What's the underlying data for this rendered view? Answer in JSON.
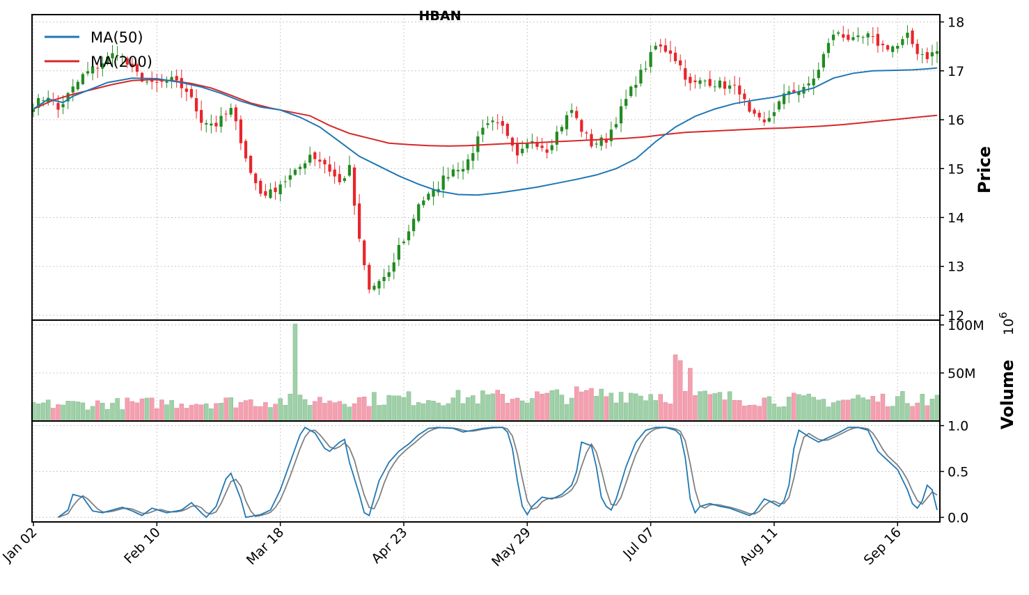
{
  "chart_data": {
    "type": "candlestick",
    "title": "HBAN",
    "colors": {
      "up": "#228b22",
      "down": "#e8262b",
      "ma50": "#1f77b4",
      "ma200": "#d62728",
      "stoch_k": "#1f77b4",
      "stoch_d": "#808080",
      "volume_up": "#9fd0a8",
      "volume_down": "#f4a0b0",
      "grid": "#c8c8c8"
    },
    "legend": {
      "placement": "upper-left",
      "entries": [
        "MA(50)",
        "MA(200)"
      ]
    },
    "x_tick_labels": [
      "Jan 02",
      "Feb 10",
      "Mar 18",
      "Apr 23",
      "May 29",
      "Jul 07",
      "Aug 11",
      "Sep 16"
    ],
    "x_tick_positions": [
      0,
      25,
      50,
      75,
      100,
      125,
      150,
      175
    ],
    "n_sessions": 184,
    "price_panel": {
      "ylabel": "Price",
      "ylim": [
        11.9,
        18.15
      ],
      "ticks": [
        12,
        13,
        14,
        15,
        16,
        17,
        18
      ],
      "grid": true,
      "close_anchors": [
        [
          0,
          16.3
        ],
        [
          3,
          16.5
        ],
        [
          5,
          16.2
        ],
        [
          7,
          16.5
        ],
        [
          10,
          16.9
        ],
        [
          13,
          17.1
        ],
        [
          17,
          17.4
        ],
        [
          20,
          17.0
        ],
        [
          24,
          16.7
        ],
        [
          28,
          16.8
        ],
        [
          31,
          16.6
        ],
        [
          34,
          16.0
        ],
        [
          37,
          15.9
        ],
        [
          40,
          16.2
        ],
        [
          42,
          15.6
        ],
        [
          44,
          14.9
        ],
        [
          46,
          14.5
        ],
        [
          48,
          14.5
        ],
        [
          50,
          14.7
        ],
        [
          53,
          14.9
        ],
        [
          56,
          15.3
        ],
        [
          59,
          15.1
        ],
        [
          62,
          14.7
        ],
        [
          64,
          15.0
        ],
        [
          66,
          13.5
        ],
        [
          68,
          12.5
        ],
        [
          70,
          12.7
        ],
        [
          72,
          12.8
        ],
        [
          74,
          13.4
        ],
        [
          76,
          13.7
        ],
        [
          78,
          14.3
        ],
        [
          81,
          14.5
        ],
        [
          83,
          14.8
        ],
        [
          85,
          15.0
        ],
        [
          88,
          15.1
        ],
        [
          91,
          15.9
        ],
        [
          94,
          16.0
        ],
        [
          96,
          15.6
        ],
        [
          98,
          15.2
        ],
        [
          101,
          15.6
        ],
        [
          104,
          15.4
        ],
        [
          107,
          15.9
        ],
        [
          109,
          16.2
        ],
        [
          111,
          15.8
        ],
        [
          113,
          15.5
        ],
        [
          116,
          15.6
        ],
        [
          119,
          16.2
        ],
        [
          122,
          16.8
        ],
        [
          124,
          17.1
        ],
        [
          126,
          17.5
        ],
        [
          129,
          17.4
        ],
        [
          131,
          17.1
        ],
        [
          133,
          16.7
        ],
        [
          136,
          16.8
        ],
        [
          140,
          16.7
        ],
        [
          143,
          16.6
        ],
        [
          145,
          16.1
        ],
        [
          148,
          15.9
        ],
        [
          150,
          16.2
        ],
        [
          153,
          16.6
        ],
        [
          156,
          16.6
        ],
        [
          159,
          17.0
        ],
        [
          161,
          17.6
        ],
        [
          163,
          17.8
        ],
        [
          166,
          17.6
        ],
        [
          169,
          17.7
        ],
        [
          172,
          17.5
        ],
        [
          175,
          17.5
        ],
        [
          177,
          17.7
        ],
        [
          179,
          17.4
        ],
        [
          181,
          17.3
        ],
        [
          183,
          17.4
        ]
      ],
      "ma50": {
        "name": "MA(50)",
        "points": [
          [
            0,
            16.22
          ],
          [
            3,
            16.42
          ],
          [
            6,
            16.35
          ],
          [
            8,
            16.48
          ],
          [
            11,
            16.6
          ],
          [
            15,
            16.76
          ],
          [
            20,
            16.85
          ],
          [
            25,
            16.84
          ],
          [
            30,
            16.76
          ],
          [
            34,
            16.67
          ],
          [
            38,
            16.54
          ],
          [
            42,
            16.38
          ],
          [
            46,
            16.26
          ],
          [
            50,
            16.2
          ],
          [
            54,
            16.05
          ],
          [
            58,
            15.85
          ],
          [
            62,
            15.55
          ],
          [
            66,
            15.25
          ],
          [
            70,
            15.05
          ],
          [
            74,
            14.85
          ],
          [
            78,
            14.68
          ],
          [
            82,
            14.54
          ],
          [
            86,
            14.47
          ],
          [
            90,
            14.46
          ],
          [
            94,
            14.5
          ],
          [
            98,
            14.56
          ],
          [
            102,
            14.62
          ],
          [
            106,
            14.7
          ],
          [
            110,
            14.78
          ],
          [
            114,
            14.87
          ],
          [
            118,
            15.0
          ],
          [
            122,
            15.2
          ],
          [
            126,
            15.55
          ],
          [
            130,
            15.85
          ],
          [
            134,
            16.07
          ],
          [
            138,
            16.22
          ],
          [
            142,
            16.33
          ],
          [
            146,
            16.4
          ],
          [
            150,
            16.46
          ],
          [
            154,
            16.55
          ],
          [
            158,
            16.65
          ],
          [
            162,
            16.85
          ],
          [
            166,
            16.95
          ],
          [
            170,
            17.0
          ],
          [
            174,
            17.01
          ],
          [
            178,
            17.02
          ],
          [
            181,
            17.04
          ],
          [
            183,
            17.06
          ]
        ]
      },
      "ma200": {
        "name": "MA(200)",
        "points": [
          [
            0,
            16.22
          ],
          [
            4,
            16.4
          ],
          [
            8,
            16.52
          ],
          [
            12,
            16.62
          ],
          [
            16,
            16.72
          ],
          [
            20,
            16.8
          ],
          [
            24,
            16.82
          ],
          [
            28,
            16.8
          ],
          [
            32,
            16.74
          ],
          [
            36,
            16.65
          ],
          [
            40,
            16.5
          ],
          [
            44,
            16.34
          ],
          [
            48,
            16.24
          ],
          [
            52,
            16.16
          ],
          [
            56,
            16.08
          ],
          [
            60,
            15.88
          ],
          [
            64,
            15.72
          ],
          [
            68,
            15.62
          ],
          [
            72,
            15.52
          ],
          [
            76,
            15.49
          ],
          [
            80,
            15.47
          ],
          [
            84,
            15.46
          ],
          [
            88,
            15.47
          ],
          [
            92,
            15.49
          ],
          [
            96,
            15.51
          ],
          [
            100,
            15.52
          ],
          [
            104,
            15.54
          ],
          [
            108,
            15.56
          ],
          [
            112,
            15.58
          ],
          [
            116,
            15.6
          ],
          [
            120,
            15.62
          ],
          [
            124,
            15.65
          ],
          [
            128,
            15.7
          ],
          [
            132,
            15.74
          ],
          [
            136,
            15.76
          ],
          [
            140,
            15.78
          ],
          [
            144,
            15.8
          ],
          [
            148,
            15.82
          ],
          [
            152,
            15.83
          ],
          [
            156,
            15.85
          ],
          [
            160,
            15.87
          ],
          [
            164,
            15.9
          ],
          [
            168,
            15.94
          ],
          [
            172,
            15.98
          ],
          [
            176,
            16.02
          ],
          [
            180,
            16.06
          ],
          [
            183,
            16.09
          ]
        ]
      }
    },
    "volume_panel": {
      "ylabel": "Volume",
      "exponent_label": "10^6",
      "ylim": [
        0,
        105
      ],
      "ticks": [
        50,
        100
      ],
      "tick_labels": [
        "50M",
        "100M"
      ],
      "grid": true,
      "spikes": [
        [
          53,
          101
        ],
        [
          130,
          69
        ],
        [
          131,
          63
        ],
        [
          133,
          55
        ],
        [
          167,
          27
        ],
        [
          180,
          28
        ]
      ],
      "base_anchors": [
        [
          0,
          17
        ],
        [
          30,
          19
        ],
        [
          50,
          21
        ],
        [
          70,
          23
        ],
        [
          100,
          25
        ],
        [
          120,
          29
        ],
        [
          140,
          24
        ],
        [
          160,
          21
        ],
        [
          183,
          24
        ]
      ]
    },
    "stochastic_panel": {
      "ylim": [
        -0.05,
        1.05
      ],
      "ticks": [
        0.0,
        0.5,
        1.0
      ],
      "tick_labels": [
        "0.0",
        "0.5",
        "1.0"
      ],
      "grid": true,
      "start_index": 5,
      "k_anchors": [
        [
          5,
          0.0
        ],
        [
          7,
          0.08
        ],
        [
          8,
          0.25
        ],
        [
          10,
          0.22
        ],
        [
          12,
          0.07
        ],
        [
          14,
          0.05
        ],
        [
          16,
          0.08
        ],
        [
          18,
          0.11
        ],
        [
          20,
          0.07
        ],
        [
          22,
          0.02
        ],
        [
          24,
          0.1
        ],
        [
          27,
          0.05
        ],
        [
          30,
          0.08
        ],
        [
          32,
          0.16
        ],
        [
          34,
          0.05
        ],
        [
          35,
          0.0
        ],
        [
          37,
          0.12
        ],
        [
          39,
          0.42
        ],
        [
          40,
          0.48
        ],
        [
          42,
          0.2
        ],
        [
          43,
          0.0
        ],
        [
          46,
          0.03
        ],
        [
          48,
          0.08
        ],
        [
          50,
          0.3
        ],
        [
          52,
          0.6
        ],
        [
          54,
          0.9
        ],
        [
          55,
          0.98
        ],
        [
          57,
          0.92
        ],
        [
          59,
          0.75
        ],
        [
          60,
          0.72
        ],
        [
          62,
          0.82
        ],
        [
          63,
          0.85
        ],
        [
          64,
          0.6
        ],
        [
          66,
          0.25
        ],
        [
          67,
          0.05
        ],
        [
          68,
          0.02
        ],
        [
          70,
          0.4
        ],
        [
          72,
          0.6
        ],
        [
          74,
          0.72
        ],
        [
          76,
          0.8
        ],
        [
          78,
          0.9
        ],
        [
          80,
          0.97
        ],
        [
          82,
          0.98
        ],
        [
          85,
          0.97
        ],
        [
          87,
          0.93
        ],
        [
          89,
          0.95
        ],
        [
          91,
          0.97
        ],
        [
          93,
          0.98
        ],
        [
          95,
          0.98
        ],
        [
          96,
          0.93
        ],
        [
          97,
          0.75
        ],
        [
          98,
          0.4
        ],
        [
          99,
          0.12
        ],
        [
          100,
          0.03
        ],
        [
          101,
          0.12
        ],
        [
          103,
          0.22
        ],
        [
          105,
          0.2
        ],
        [
          107,
          0.25
        ],
        [
          109,
          0.35
        ],
        [
          110,
          0.5
        ],
        [
          111,
          0.82
        ],
        [
          113,
          0.78
        ],
        [
          114,
          0.55
        ],
        [
          115,
          0.22
        ],
        [
          116,
          0.12
        ],
        [
          117,
          0.08
        ],
        [
          118,
          0.2
        ],
        [
          120,
          0.55
        ],
        [
          122,
          0.82
        ],
        [
          124,
          0.95
        ],
        [
          126,
          0.98
        ],
        [
          128,
          0.98
        ],
        [
          130,
          0.95
        ],
        [
          131,
          0.9
        ],
        [
          132,
          0.65
        ],
        [
          133,
          0.2
        ],
        [
          134,
          0.05
        ],
        [
          135,
          0.12
        ],
        [
          137,
          0.15
        ],
        [
          139,
          0.12
        ],
        [
          141,
          0.1
        ],
        [
          143,
          0.06
        ],
        [
          145,
          0.02
        ],
        [
          146,
          0.05
        ],
        [
          148,
          0.2
        ],
        [
          149,
          0.18
        ],
        [
          151,
          0.12
        ],
        [
          152,
          0.18
        ],
        [
          153,
          0.35
        ],
        [
          154,
          0.75
        ],
        [
          155,
          0.95
        ],
        [
          157,
          0.88
        ],
        [
          159,
          0.82
        ],
        [
          161,
          0.87
        ],
        [
          163,
          0.92
        ],
        [
          165,
          0.98
        ],
        [
          167,
          0.98
        ],
        [
          169,
          0.95
        ],
        [
          171,
          0.72
        ],
        [
          173,
          0.62
        ],
        [
          175,
          0.52
        ],
        [
          177,
          0.3
        ],
        [
          178,
          0.15
        ],
        [
          179,
          0.1
        ],
        [
          180,
          0.18
        ],
        [
          181,
          0.35
        ],
        [
          182,
          0.3
        ],
        [
          183,
          0.08
        ]
      ],
      "d_smoothing": 3
    }
  }
}
